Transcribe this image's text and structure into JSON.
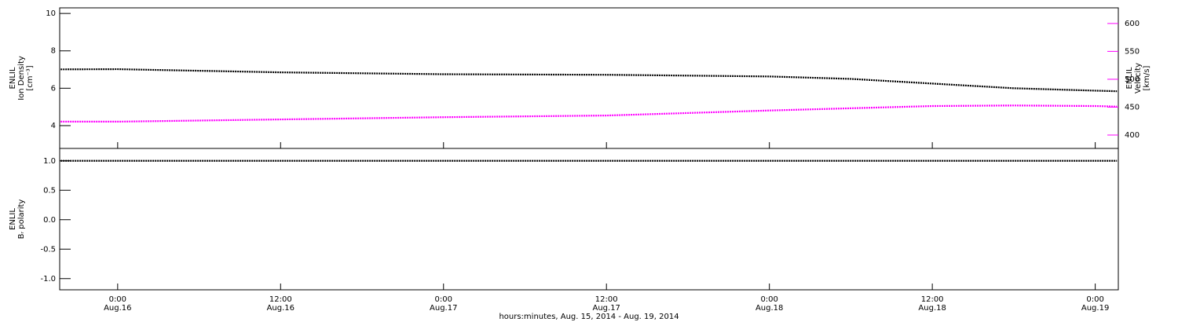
{
  "chart_data": [
    {
      "type": "line",
      "ylabel": [
        "ENLIL",
        "Ion Density",
        "[cm⁻³]"
      ],
      "y2label": [
        "ENLIL",
        "Velocity",
        "[km/s]"
      ],
      "xlim": [
        -4.27,
        73.7
      ],
      "ylim": [
        2.78,
        10.3
      ],
      "yticks": [
        4,
        6,
        8,
        10
      ],
      "y2lim": [
        376,
        628
      ],
      "y2ticks": [
        400,
        450,
        500,
        550,
        600
      ],
      "series": [
        {
          "color": "#000000",
          "x": [
            -4.2,
            0,
            12,
            24,
            36,
            48,
            54,
            60,
            66,
            72,
            73.6
          ],
          "values": [
            7.01,
            7.02,
            6.85,
            6.75,
            6.72,
            6.63,
            6.5,
            6.25,
            6.0,
            5.87,
            5.84
          ]
        },
        {
          "color": "#ff00ff",
          "axis": "y2",
          "x": [
            -4.2,
            0,
            12,
            24,
            36,
            48,
            54,
            60,
            66,
            72,
            73.6
          ],
          "values": [
            424,
            424,
            428,
            432,
            435,
            444,
            448,
            452,
            453,
            452,
            451
          ]
        }
      ]
    },
    {
      "type": "line",
      "ylabel": [
        "ENLIL",
        "Bᵣ polarity"
      ],
      "xlabel": "hours:minutes, Aug. 15, 2014 - Aug. 19, 2014",
      "xlim": [
        -4.27,
        73.7
      ],
      "xticks": [
        {
          "value": 0,
          "label": [
            "0:00",
            "Aug.16"
          ]
        },
        {
          "value": 12,
          "label": [
            "12:00",
            "Aug.16"
          ]
        },
        {
          "value": 24,
          "label": [
            "0:00",
            "Aug.17"
          ]
        },
        {
          "value": 36,
          "label": [
            "12:00",
            "Aug.17"
          ]
        },
        {
          "value": 48,
          "label": [
            "0:00",
            "Aug.18"
          ]
        },
        {
          "value": 60,
          "label": [
            "12:00",
            "Aug.18"
          ]
        },
        {
          "value": 72,
          "label": [
            "0:00",
            "Aug.19"
          ]
        }
      ],
      "ylim": [
        -1.19,
        1.21
      ],
      "yticks": [
        {
          "value": 1,
          "label": "1.0"
        },
        {
          "value": 0.5,
          "label": "0.5"
        },
        {
          "value": 0,
          "label": "0.0"
        },
        {
          "value": -0.5,
          "label": "-0.5"
        },
        {
          "value": -1,
          "label": "-1.0"
        }
      ],
      "series": [
        {
          "color": "#000000",
          "x": [
            -4.2,
            73.6
          ],
          "values": [
            1.0,
            1.0
          ]
        }
      ]
    }
  ]
}
